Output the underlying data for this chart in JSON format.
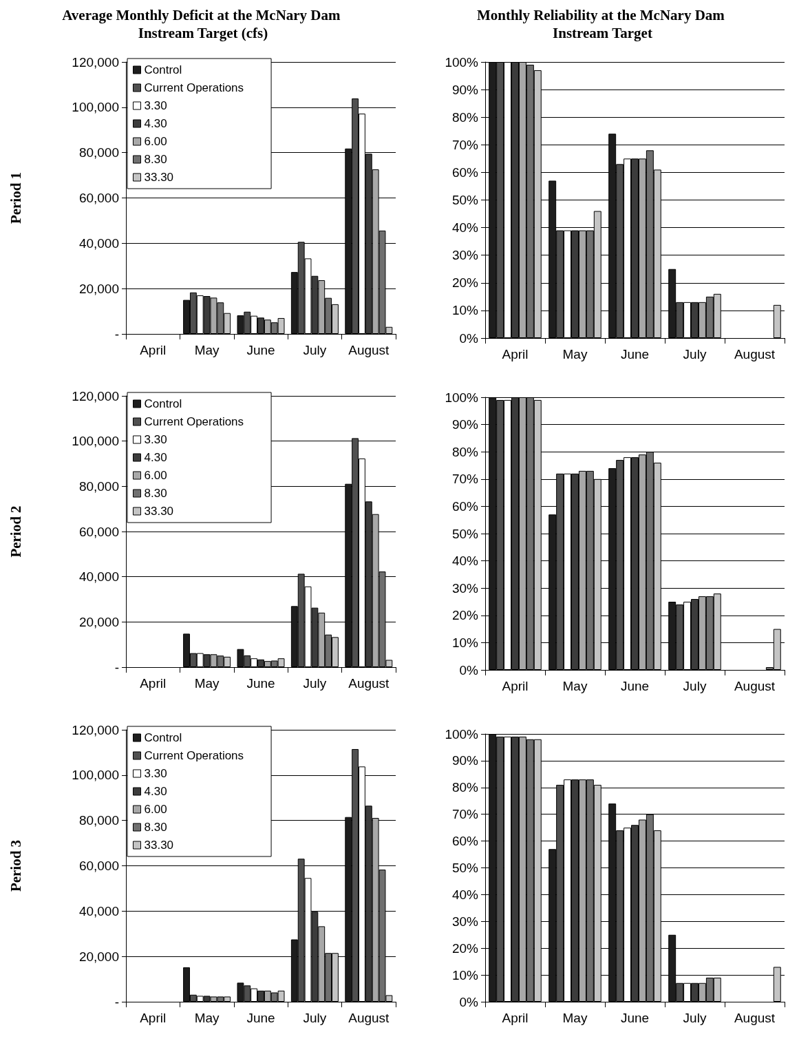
{
  "chart_data": [
    {
      "type": "bar",
      "title": "Average Monthly Deficit at the McNary Dam Instream Target (cfs)",
      "ylabel": "Period 1",
      "categories": [
        "April",
        "May",
        "June",
        "July",
        "August"
      ],
      "ylim": [
        0,
        120000
      ],
      "yticks": [
        {
          "value": 0,
          "label": "-"
        },
        {
          "value": 20000,
          "label": "20,000"
        },
        {
          "value": 40000,
          "label": "40,000"
        },
        {
          "value": 60000,
          "label": "60,000"
        },
        {
          "value": 80000,
          "label": "80,000"
        },
        {
          "value": 100000,
          "label": "100,000"
        },
        {
          "value": 120000,
          "label": "120,000"
        }
      ],
      "grid": "y",
      "legend": "top left",
      "series": [
        {
          "name": "Control",
          "color": "#1e1e1e",
          "values": [
            null,
            15000,
            8200,
            27300,
            81800
          ]
        },
        {
          "name": "Current Operations",
          "color": "#505050",
          "values": [
            null,
            18300,
            9800,
            40600,
            103900
          ]
        },
        {
          "name": "3.30",
          "color": "#ffffff",
          "values": [
            null,
            17000,
            8000,
            33300,
            97200
          ]
        },
        {
          "name": "4.30",
          "color": "#3c3c3c",
          "values": [
            null,
            16700,
            7200,
            25600,
            79500
          ]
        },
        {
          "name": "6.00",
          "color": "#a8a8a8",
          "values": [
            null,
            16000,
            6300,
            23700,
            72600
          ]
        },
        {
          "name": "8.30",
          "color": "#707070",
          "values": [
            null,
            13900,
            5100,
            15900,
            45600
          ]
        },
        {
          "name": "33.30",
          "color": "#c4c4c4",
          "values": [
            null,
            9200,
            7000,
            13100,
            3100
          ]
        }
      ]
    },
    {
      "type": "bar",
      "title": "Monthly Reliability at the McNary Dam Instream Target",
      "categories": [
        "April",
        "May",
        "June",
        "July",
        "August"
      ],
      "ylim": [
        0,
        100
      ],
      "yticks": [
        {
          "value": 0,
          "label": "0%"
        },
        {
          "value": 10,
          "label": "10%"
        },
        {
          "value": 20,
          "label": "20%"
        },
        {
          "value": 30,
          "label": "30%"
        },
        {
          "value": 40,
          "label": "40%"
        },
        {
          "value": 50,
          "label": "50%"
        },
        {
          "value": 60,
          "label": "60%"
        },
        {
          "value": 70,
          "label": "70%"
        },
        {
          "value": 80,
          "label": "80%"
        },
        {
          "value": 90,
          "label": "90%"
        },
        {
          "value": 100,
          "label": "100%"
        }
      ],
      "grid": "y",
      "series": [
        {
          "color": "#1e1e1e",
          "values": [
            100,
            57,
            74,
            25,
            null
          ]
        },
        {
          "color": "#505050",
          "values": [
            100,
            39,
            63,
            13,
            null
          ]
        },
        {
          "color": "#ffffff",
          "values": [
            100,
            39,
            65,
            13,
            null
          ]
        },
        {
          "color": "#3c3c3c",
          "values": [
            100,
            39,
            65,
            13,
            null
          ]
        },
        {
          "color": "#a8a8a8",
          "values": [
            100,
            39,
            65,
            13,
            null
          ]
        },
        {
          "color": "#707070",
          "values": [
            99,
            39,
            68,
            15,
            null
          ]
        },
        {
          "color": "#c4c4c4",
          "values": [
            97,
            46,
            61,
            16,
            12
          ]
        }
      ]
    },
    {
      "type": "bar",
      "ylabel": "Period 2",
      "categories": [
        "April",
        "May",
        "June",
        "July",
        "August"
      ],
      "ylim": [
        0,
        120000
      ],
      "yticks": [
        {
          "value": 0,
          "label": "-"
        },
        {
          "value": 20000,
          "label": "20,000"
        },
        {
          "value": 40000,
          "label": "40,000"
        },
        {
          "value": 60000,
          "label": "60,000"
        },
        {
          "value": 80000,
          "label": "80,000"
        },
        {
          "value": 100000,
          "label": "100,000"
        },
        {
          "value": 120000,
          "label": "120,000"
        }
      ],
      "grid": "y",
      "legend": "top left",
      "series": [
        {
          "name": "Control",
          "color": "#1e1e1e",
          "values": [
            null,
            14800,
            8000,
            27000,
            81100
          ]
        },
        {
          "name": "Current Operations",
          "color": "#505050",
          "values": [
            null,
            6200,
            5200,
            41300,
            101300
          ]
        },
        {
          "name": "3.30",
          "color": "#ffffff",
          "values": [
            null,
            6200,
            3900,
            35700,
            92300
          ]
        },
        {
          "name": "4.30",
          "color": "#3c3c3c",
          "values": [
            null,
            5700,
            3400,
            26300,
            73300
          ]
        },
        {
          "name": "6.00",
          "color": "#a8a8a8",
          "values": [
            null,
            5700,
            2700,
            24100,
            67700
          ]
        },
        {
          "name": "8.30",
          "color": "#707070",
          "values": [
            null,
            5100,
            2900,
            14400,
            42300
          ]
        },
        {
          "name": "33.30",
          "color": "#c4c4c4",
          "values": [
            null,
            4600,
            3900,
            13300,
            3200
          ]
        }
      ]
    },
    {
      "type": "bar",
      "categories": [
        "April",
        "May",
        "June",
        "July",
        "August"
      ],
      "ylim": [
        0,
        100
      ],
      "yticks": [
        {
          "value": 0,
          "label": "0%"
        },
        {
          "value": 10,
          "label": "10%"
        },
        {
          "value": 20,
          "label": "20%"
        },
        {
          "value": 30,
          "label": "30%"
        },
        {
          "value": 40,
          "label": "40%"
        },
        {
          "value": 50,
          "label": "50%"
        },
        {
          "value": 60,
          "label": "60%"
        },
        {
          "value": 70,
          "label": "70%"
        },
        {
          "value": 80,
          "label": "80%"
        },
        {
          "value": 90,
          "label": "90%"
        },
        {
          "value": 100,
          "label": "100%"
        }
      ],
      "grid": "y",
      "series": [
        {
          "color": "#1e1e1e",
          "values": [
            100,
            57,
            74,
            25,
            null
          ]
        },
        {
          "color": "#505050",
          "values": [
            99,
            72,
            77,
            24,
            null
          ]
        },
        {
          "color": "#ffffff",
          "values": [
            99,
            72,
            78,
            25,
            null
          ]
        },
        {
          "color": "#3c3c3c",
          "values": [
            100,
            72,
            78,
            26,
            null
          ]
        },
        {
          "color": "#a8a8a8",
          "values": [
            100,
            73,
            79,
            27,
            null
          ]
        },
        {
          "color": "#707070",
          "values": [
            100,
            73,
            80,
            27,
            1
          ]
        },
        {
          "color": "#c4c4c4",
          "values": [
            99,
            70,
            76,
            28,
            15
          ]
        }
      ]
    },
    {
      "type": "bar",
      "ylabel": "Period 3",
      "categories": [
        "April",
        "May",
        "June",
        "July",
        "August"
      ],
      "ylim": [
        0,
        120000
      ],
      "yticks": [
        {
          "value": 0,
          "label": "-"
        },
        {
          "value": 20000,
          "label": "20,000"
        },
        {
          "value": 40000,
          "label": "40,000"
        },
        {
          "value": 60000,
          "label": "60,000"
        },
        {
          "value": 80000,
          "label": "80,000"
        },
        {
          "value": 100000,
          "label": "100,000"
        },
        {
          "value": 120000,
          "label": "120,000"
        }
      ],
      "grid": "y",
      "legend": "top left",
      "series": [
        {
          "name": "Control",
          "color": "#1e1e1e",
          "values": [
            null,
            15200,
            8400,
            27500,
            81500
          ]
        },
        {
          "name": "Current Operations",
          "color": "#505050",
          "values": [
            null,
            3100,
            7200,
            63100,
            111500
          ]
        },
        {
          "name": "3.30",
          "color": "#ffffff",
          "values": [
            null,
            2600,
            5900,
            54600,
            103800
          ]
        },
        {
          "name": "4.30",
          "color": "#3c3c3c",
          "values": [
            null,
            2600,
            4900,
            39700,
            86500
          ]
        },
        {
          "name": "6.00",
          "color": "#a8a8a8",
          "values": [
            null,
            2300,
            4900,
            33300,
            81100
          ]
        },
        {
          "name": "8.30",
          "color": "#707070",
          "values": [
            null,
            2300,
            4100,
            21500,
            58300
          ]
        },
        {
          "name": "33.30",
          "color": "#c4c4c4",
          "values": [
            null,
            2300,
            4900,
            21500,
            2900
          ]
        }
      ]
    },
    {
      "type": "bar",
      "categories": [
        "April",
        "May",
        "June",
        "July",
        "August"
      ],
      "ylim": [
        0,
        100
      ],
      "yticks": [
        {
          "value": 0,
          "label": "0%"
        },
        {
          "value": 10,
          "label": "10%"
        },
        {
          "value": 20,
          "label": "20%"
        },
        {
          "value": 30,
          "label": "30%"
        },
        {
          "value": 40,
          "label": "40%"
        },
        {
          "value": 50,
          "label": "50%"
        },
        {
          "value": 60,
          "label": "60%"
        },
        {
          "value": 70,
          "label": "70%"
        },
        {
          "value": 80,
          "label": "80%"
        },
        {
          "value": 90,
          "label": "90%"
        },
        {
          "value": 100,
          "label": "100%"
        }
      ],
      "grid": "y",
      "series": [
        {
          "color": "#1e1e1e",
          "values": [
            100,
            57,
            74,
            25,
            null
          ]
        },
        {
          "color": "#505050",
          "values": [
            99,
            81,
            64,
            7,
            null
          ]
        },
        {
          "color": "#ffffff",
          "values": [
            99,
            83,
            65,
            7,
            null
          ]
        },
        {
          "color": "#3c3c3c",
          "values": [
            99,
            83,
            66,
            7,
            null
          ]
        },
        {
          "color": "#a8a8a8",
          "values": [
            99,
            83,
            68,
            7,
            null
          ]
        },
        {
          "color": "#707070",
          "values": [
            98,
            83,
            70,
            9,
            null
          ]
        },
        {
          "color": "#c4c4c4",
          "values": [
            98,
            81,
            64,
            9,
            13
          ]
        }
      ]
    }
  ]
}
